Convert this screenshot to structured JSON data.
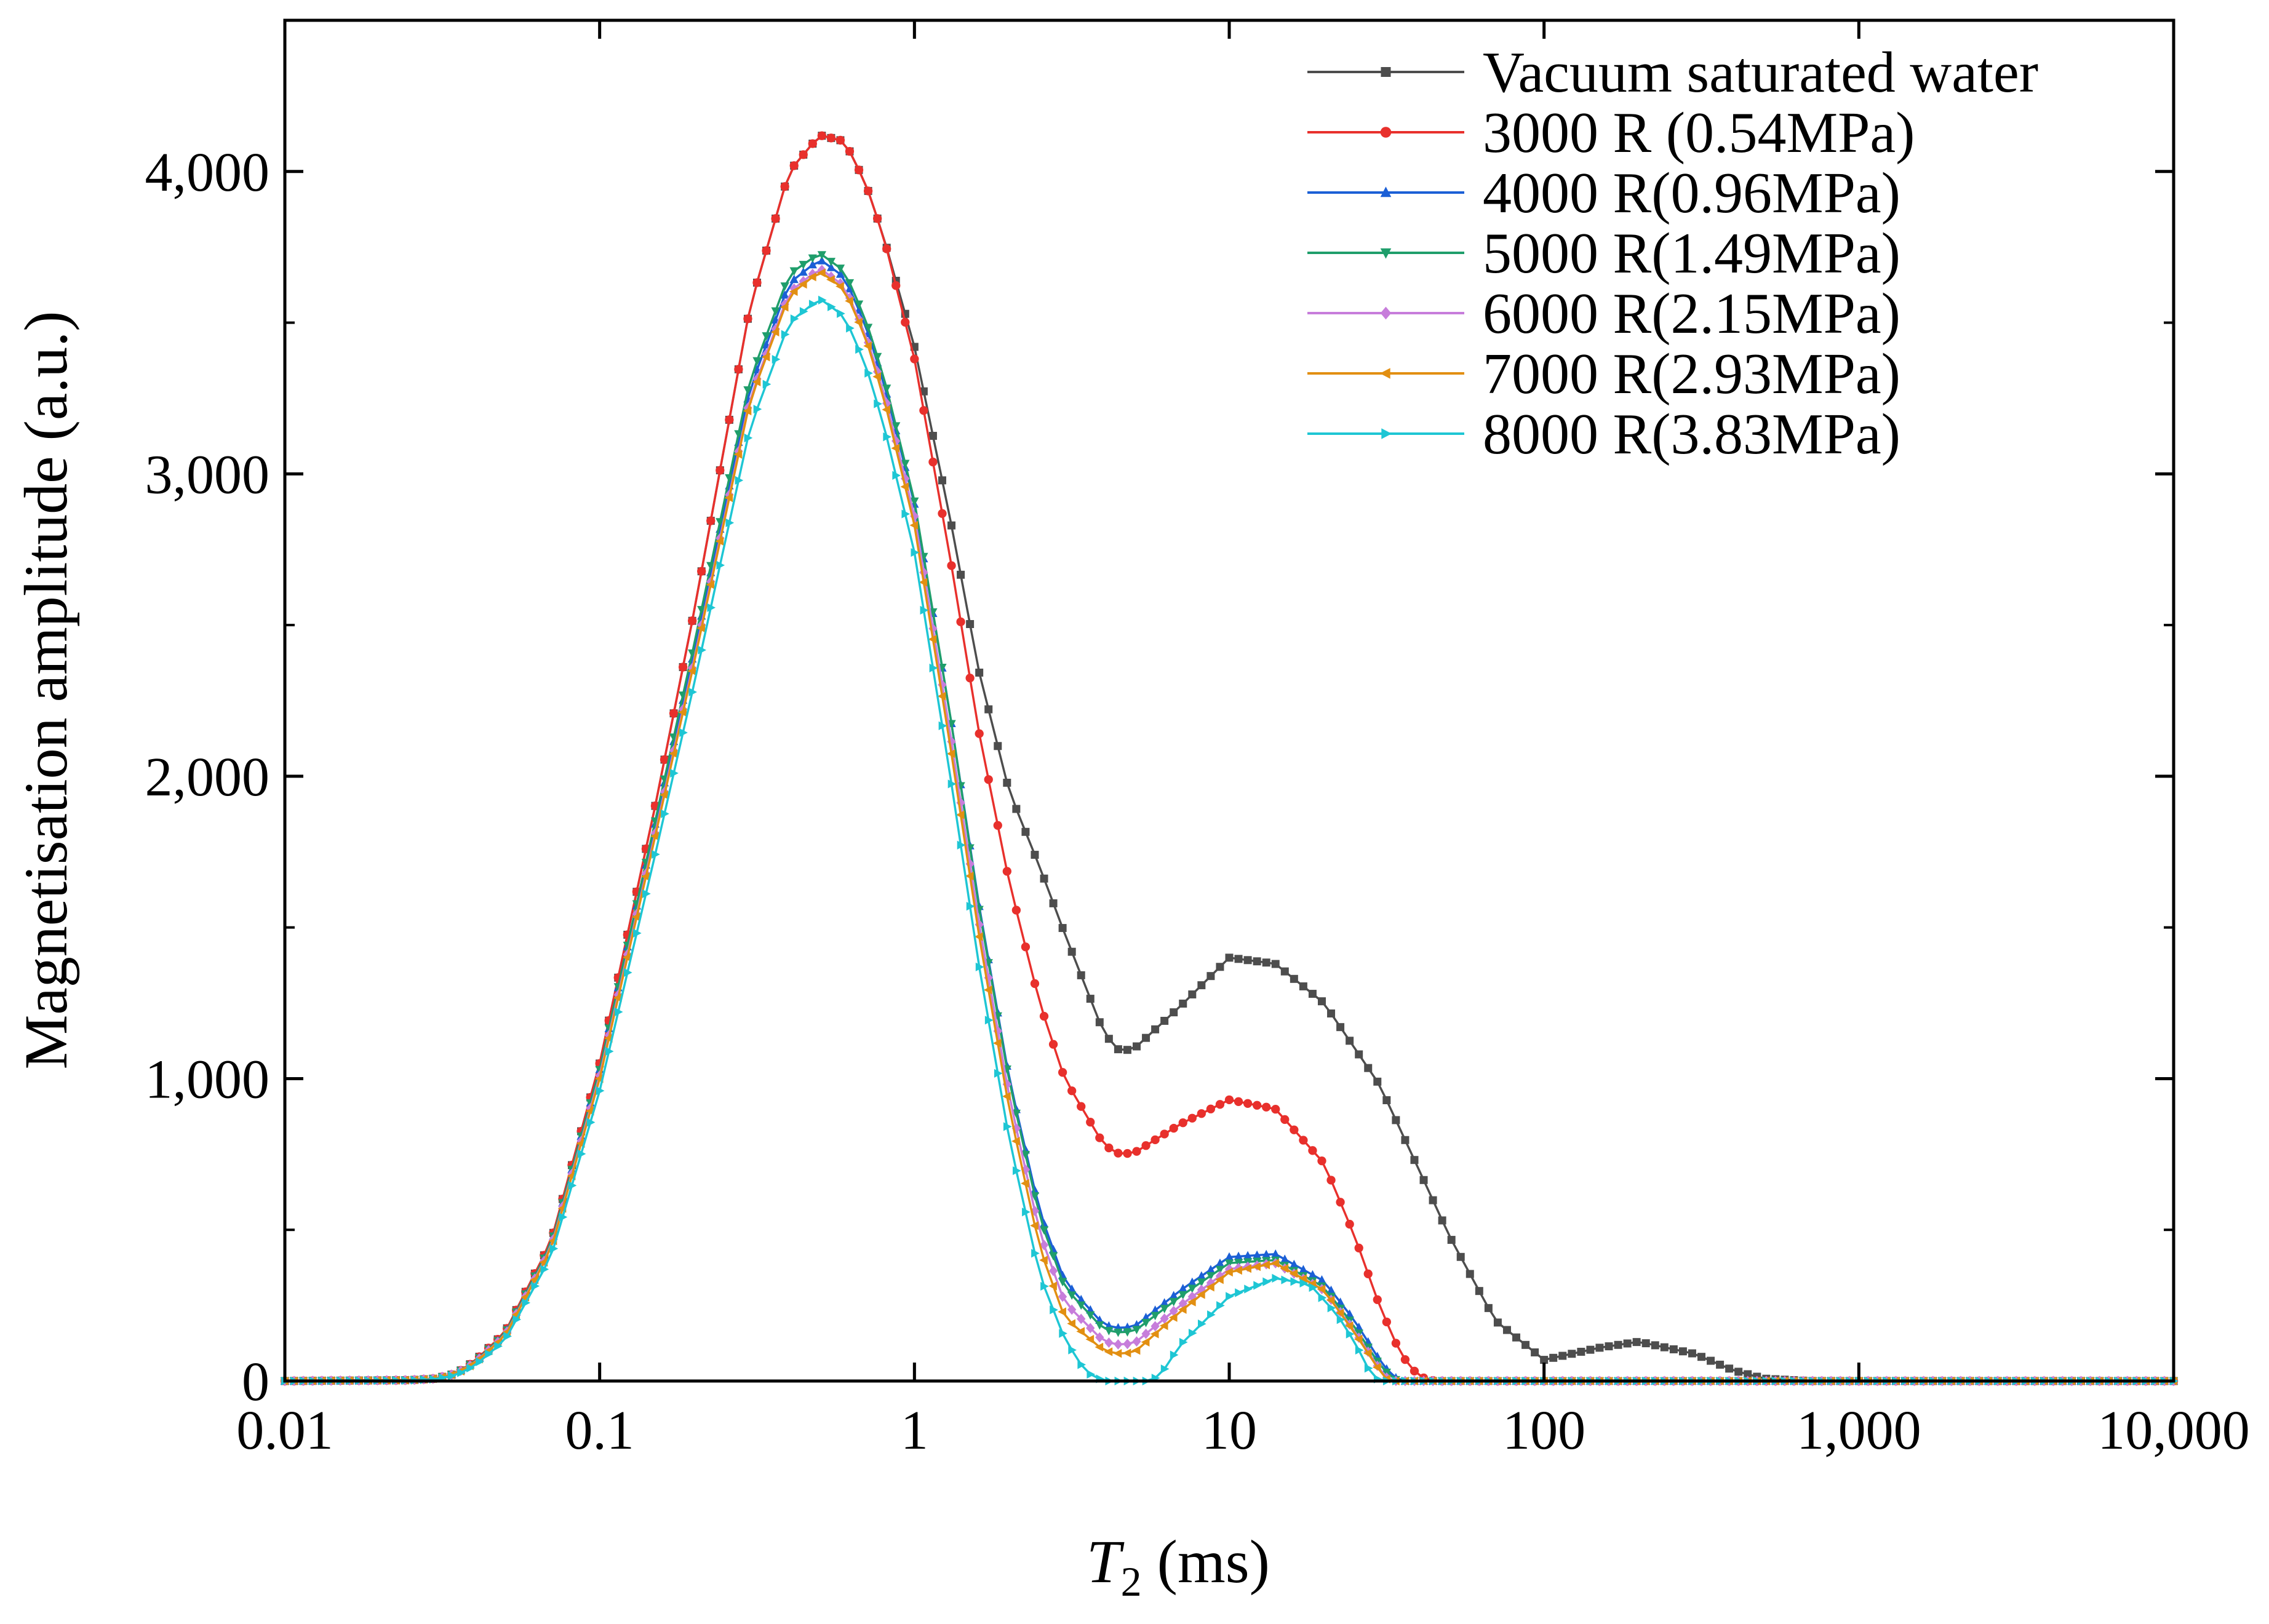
{
  "chart_data": {
    "type": "line",
    "title": "",
    "xlabel": "T2 (ms)",
    "xlabel_parts": {
      "symbol": "T",
      "subscript": "2",
      "unit": " (ms)"
    },
    "ylabel": "Magnetisation amplitude (a.u.)",
    "x_scale": "log",
    "xlim": [
      0.01,
      10000
    ],
    "ylim": [
      0,
      4500
    ],
    "x_ticks": [
      {
        "value": 0.01,
        "label": "0.01"
      },
      {
        "value": 0.1,
        "label": "0.1"
      },
      {
        "value": 1,
        "label": "1"
      },
      {
        "value": 10,
        "label": "10"
      },
      {
        "value": 100,
        "label": "100"
      },
      {
        "value": 1000,
        "label": "1,000"
      },
      {
        "value": 10000,
        "label": "10,000"
      }
    ],
    "y_ticks": [
      {
        "value": 0,
        "label": "0"
      },
      {
        "value": 1000,
        "label": "1,000"
      },
      {
        "value": 2000,
        "label": "2,000"
      },
      {
        "value": 3000,
        "label": "3,000"
      },
      {
        "value": 4000,
        "label": "4,000"
      }
    ],
    "grid": false,
    "legend_position": "top-right",
    "series": [
      {
        "name": "Vacuum saturated water",
        "color": "#4d4d4d",
        "marker": "square",
        "points": [
          [
            0.01,
            0
          ],
          [
            0.025,
            3
          ],
          [
            0.03,
            8
          ],
          [
            0.035,
            25
          ],
          [
            0.04,
            65
          ],
          [
            0.05,
            160
          ],
          [
            0.07,
            460
          ],
          [
            0.1,
            1050
          ],
          [
            0.15,
            1900
          ],
          [
            0.2,
            2550
          ],
          [
            0.3,
            3550
          ],
          [
            0.4,
            4000
          ],
          [
            0.5,
            4120
          ],
          [
            0.6,
            4100
          ],
          [
            0.7,
            3960
          ],
          [
            0.8,
            3780
          ],
          [
            1,
            3420
          ],
          [
            1.3,
            2850
          ],
          [
            1.6,
            2350
          ],
          [
            2,
            1950
          ],
          [
            2.5,
            1700
          ],
          [
            3,
            1480
          ],
          [
            4,
            1150
          ],
          [
            4.5,
            1090
          ],
          [
            5,
            1100
          ],
          [
            7,
            1240
          ],
          [
            10,
            1400
          ],
          [
            14,
            1380
          ],
          [
            20,
            1250
          ],
          [
            30,
            980
          ],
          [
            40,
            700
          ],
          [
            50,
            480
          ],
          [
            70,
            200
          ],
          [
            100,
            70
          ],
          [
            150,
            110
          ],
          [
            200,
            130
          ],
          [
            300,
            90
          ],
          [
            400,
            35
          ],
          [
            500,
            8
          ],
          [
            700,
            0
          ],
          [
            10000,
            0
          ]
        ]
      },
      {
        "name": "3000 R (0.54MPa)",
        "color": "#e8302c",
        "marker": "circle",
        "points": [
          [
            0.01,
            0
          ],
          [
            0.025,
            3
          ],
          [
            0.03,
            8
          ],
          [
            0.035,
            25
          ],
          [
            0.04,
            65
          ],
          [
            0.05,
            160
          ],
          [
            0.07,
            460
          ],
          [
            0.1,
            1050
          ],
          [
            0.15,
            1900
          ],
          [
            0.2,
            2550
          ],
          [
            0.3,
            3550
          ],
          [
            0.4,
            4000
          ],
          [
            0.5,
            4120
          ],
          [
            0.6,
            4100
          ],
          [
            0.7,
            3960
          ],
          [
            0.8,
            3780
          ],
          [
            1,
            3380
          ],
          [
            1.3,
            2720
          ],
          [
            1.6,
            2150
          ],
          [
            2,
            1650
          ],
          [
            2.5,
            1250
          ],
          [
            3,
            1000
          ],
          [
            4,
            780
          ],
          [
            4.5,
            750
          ],
          [
            5,
            755
          ],
          [
            7,
            850
          ],
          [
            10,
            930
          ],
          [
            14,
            900
          ],
          [
            20,
            720
          ],
          [
            25,
            480
          ],
          [
            30,
            250
          ],
          [
            35,
            90
          ],
          [
            40,
            15
          ],
          [
            45,
            0
          ],
          [
            10000,
            0
          ]
        ]
      },
      {
        "name": "4000 R(0.96MPa)",
        "color": "#1b5fd6",
        "marker": "triangle-up",
        "points": [
          [
            0.01,
            0
          ],
          [
            0.025,
            3
          ],
          [
            0.03,
            8
          ],
          [
            0.035,
            25
          ],
          [
            0.04,
            62
          ],
          [
            0.05,
            155
          ],
          [
            0.07,
            450
          ],
          [
            0.1,
            1030
          ],
          [
            0.15,
            1840
          ],
          [
            0.2,
            2420
          ],
          [
            0.3,
            3280
          ],
          [
            0.4,
            3630
          ],
          [
            0.5,
            3710
          ],
          [
            0.6,
            3650
          ],
          [
            0.7,
            3490
          ],
          [
            0.8,
            3300
          ],
          [
            1,
            2900
          ],
          [
            1.3,
            2200
          ],
          [
            1.6,
            1580
          ],
          [
            2,
            1000
          ],
          [
            2.5,
            560
          ],
          [
            3,
            330
          ],
          [
            4,
            185
          ],
          [
            4.5,
            175
          ],
          [
            5,
            180
          ],
          [
            7,
            300
          ],
          [
            10,
            410
          ],
          [
            14,
            420
          ],
          [
            20,
            330
          ],
          [
            25,
            200
          ],
          [
            30,
            70
          ],
          [
            33,
            15
          ],
          [
            36,
            0
          ],
          [
            10000,
            0
          ]
        ]
      },
      {
        "name": "5000 R(1.49MPa)",
        "color": "#1f9e6b",
        "marker": "triangle-down",
        "points": [
          [
            0.01,
            0
          ],
          [
            0.025,
            3
          ],
          [
            0.03,
            8
          ],
          [
            0.035,
            25
          ],
          [
            0.04,
            62
          ],
          [
            0.05,
            155
          ],
          [
            0.07,
            450
          ],
          [
            0.1,
            1030
          ],
          [
            0.15,
            1850
          ],
          [
            0.2,
            2440
          ],
          [
            0.3,
            3310
          ],
          [
            0.4,
            3660
          ],
          [
            0.5,
            3730
          ],
          [
            0.6,
            3670
          ],
          [
            0.7,
            3510
          ],
          [
            0.8,
            3320
          ],
          [
            1,
            2910
          ],
          [
            1.3,
            2200
          ],
          [
            1.6,
            1570
          ],
          [
            2,
            990
          ],
          [
            2.5,
            540
          ],
          [
            3,
            310
          ],
          [
            4,
            170
          ],
          [
            4.5,
            160
          ],
          [
            5,
            165
          ],
          [
            7,
            280
          ],
          [
            10,
            390
          ],
          [
            14,
            400
          ],
          [
            20,
            310
          ],
          [
            25,
            180
          ],
          [
            30,
            55
          ],
          [
            33,
            8
          ],
          [
            35,
            0
          ],
          [
            10000,
            0
          ]
        ]
      },
      {
        "name": "6000 R(2.15MPa)",
        "color": "#c77ddb",
        "marker": "diamond",
        "points": [
          [
            0.01,
            0
          ],
          [
            0.025,
            3
          ],
          [
            0.03,
            8
          ],
          [
            0.035,
            25
          ],
          [
            0.04,
            60
          ],
          [
            0.05,
            150
          ],
          [
            0.07,
            440
          ],
          [
            0.1,
            1010
          ],
          [
            0.15,
            1810
          ],
          [
            0.2,
            2390
          ],
          [
            0.3,
            3250
          ],
          [
            0.4,
            3600
          ],
          [
            0.5,
            3680
          ],
          [
            0.6,
            3620
          ],
          [
            0.7,
            3460
          ],
          [
            0.8,
            3270
          ],
          [
            1,
            2860
          ],
          [
            1.3,
            2140
          ],
          [
            1.6,
            1520
          ],
          [
            2,
            940
          ],
          [
            2.5,
            490
          ],
          [
            3,
            260
          ],
          [
            4,
            130
          ],
          [
            4.5,
            120
          ],
          [
            5,
            125
          ],
          [
            7,
            250
          ],
          [
            10,
            370
          ],
          [
            14,
            390
          ],
          [
            20,
            300
          ],
          [
            25,
            165
          ],
          [
            30,
            40
          ],
          [
            32,
            5
          ],
          [
            34,
            0
          ],
          [
            10000,
            0
          ]
        ]
      },
      {
        "name": "7000 R(2.93MPa)",
        "color": "#e28f12",
        "marker": "triangle-left",
        "points": [
          [
            0.01,
            0
          ],
          [
            0.025,
            3
          ],
          [
            0.03,
            8
          ],
          [
            0.035,
            24
          ],
          [
            0.04,
            58
          ],
          [
            0.05,
            148
          ],
          [
            0.07,
            435
          ],
          [
            0.1,
            1000
          ],
          [
            0.15,
            1800
          ],
          [
            0.2,
            2380
          ],
          [
            0.3,
            3240
          ],
          [
            0.4,
            3590
          ],
          [
            0.5,
            3670
          ],
          [
            0.6,
            3610
          ],
          [
            0.7,
            3450
          ],
          [
            0.8,
            3250
          ],
          [
            1,
            2830
          ],
          [
            1.3,
            2100
          ],
          [
            1.6,
            1480
          ],
          [
            2,
            900
          ],
          [
            2.5,
            440
          ],
          [
            3,
            210
          ],
          [
            4,
            100
          ],
          [
            4.5,
            90
          ],
          [
            5,
            95
          ],
          [
            7,
            230
          ],
          [
            10,
            360
          ],
          [
            14,
            390
          ],
          [
            20,
            300
          ],
          [
            25,
            160
          ],
          [
            30,
            35
          ],
          [
            32,
            0
          ],
          [
            10000,
            0
          ]
        ]
      },
      {
        "name": "8000 R(3.83MPa)",
        "color": "#1ec6d4",
        "marker": "triangle-right",
        "points": [
          [
            0.01,
            0
          ],
          [
            0.025,
            2
          ],
          [
            0.03,
            6
          ],
          [
            0.035,
            20
          ],
          [
            0.04,
            50
          ],
          [
            0.05,
            135
          ],
          [
            0.07,
            410
          ],
          [
            0.1,
            960
          ],
          [
            0.15,
            1740
          ],
          [
            0.2,
            2310
          ],
          [
            0.3,
            3150
          ],
          [
            0.4,
            3500
          ],
          [
            0.5,
            3580
          ],
          [
            0.6,
            3520
          ],
          [
            0.7,
            3360
          ],
          [
            0.8,
            3160
          ],
          [
            1,
            2740
          ],
          [
            1.3,
            2000
          ],
          [
            1.6,
            1380
          ],
          [
            2,
            800
          ],
          [
            2.5,
            350
          ],
          [
            3,
            140
          ],
          [
            3.5,
            30
          ],
          [
            4,
            0
          ],
          [
            5.5,
            0
          ],
          [
            6,
            15
          ],
          [
            7,
            120
          ],
          [
            10,
            280
          ],
          [
            14,
            340
          ],
          [
            18,
            320
          ],
          [
            22,
            220
          ],
          [
            25,
            130
          ],
          [
            28,
            30
          ],
          [
            30,
            0
          ],
          [
            10000,
            0
          ]
        ]
      }
    ]
  }
}
